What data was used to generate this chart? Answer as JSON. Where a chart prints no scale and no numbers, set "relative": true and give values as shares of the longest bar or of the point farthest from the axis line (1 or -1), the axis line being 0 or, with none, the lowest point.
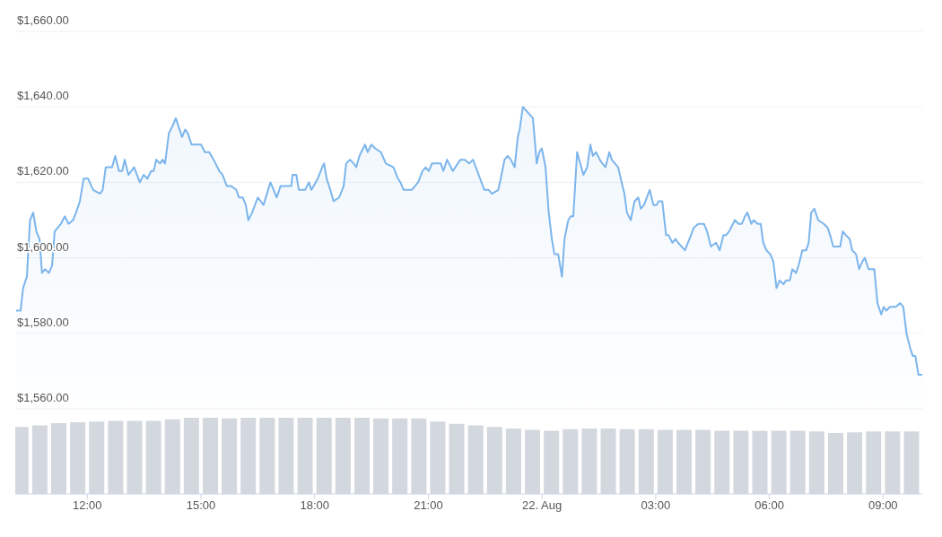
{
  "chart_data": [
    {
      "type": "area",
      "tick_labels": "y",
      "grid": "y",
      "marker": "none",
      "line_style": "solid",
      "xlim": [
        "--08-21T10:06",
        "--08-22T10:02"
      ],
      "ylim": [
        1560,
        1660
      ],
      "yticks": [
        {
          "value": 1560,
          "label": "$1,560.00"
        },
        {
          "value": 1580,
          "label": "$1,580.00"
        },
        {
          "value": 1600,
          "label": "$1,600.00"
        },
        {
          "value": 1620,
          "label": "$1,620.00"
        },
        {
          "value": 1640,
          "label": "$1,640.00"
        },
        {
          "value": 1660,
          "label": "$1,660.00"
        }
      ],
      "series": [
        {
          "color": "#7cb5ec",
          "x": [
            "--08-21T10:06",
            "--08-21T10:13",
            "--08-21T10:17",
            "--08-21T10:23",
            "--08-21T10:28",
            "--08-21T10:33",
            "--08-21T10:38",
            "--08-21T10:43",
            "--08-21T10:47",
            "--08-21T10:52",
            "--08-21T10:58",
            "--08-21T11:03",
            "--08-21T11:07",
            "--08-21T11:17",
            "--08-21T11:23",
            "--08-21T11:29",
            "--08-21T11:36",
            "--08-21T11:41",
            "--08-21T11:47",
            "--08-21T11:53",
            "--08-21T12:00",
            "--08-21T12:08",
            "--08-21T12:19",
            "--08-21T12:23",
            "--08-21T12:28",
            "--08-21T12:38",
            "--08-21T12:43",
            "--08-21T12:49",
            "--08-21T12:54",
            "--08-21T12:58",
            "--08-21T13:04",
            "--08-21T13:13",
            "--08-21T13:22",
            "--08-21T13:28",
            "--08-21T13:34",
            "--08-21T13:40",
            "--08-21T13:44",
            "--08-21T13:48",
            "--08-21T13:54",
            "--08-21T13:58",
            "--08-21T14:02",
            "--08-21T14:08",
            "--08-21T14:14",
            "--08-21T14:19",
            "--08-21T14:29",
            "--08-21T14:34",
            "--08-21T14:38",
            "--08-21T14:44",
            "--08-21T14:52",
            "--08-21T14:59",
            "--08-21T15:05",
            "--08-21T15:12",
            "--08-21T15:19",
            "--08-21T15:28",
            "--08-21T15:33",
            "--08-21T15:40",
            "--08-21T15:47",
            "--08-21T15:55",
            "--08-21T15:59",
            "--08-21T16:05",
            "--08-21T16:10",
            "--08-21T16:14",
            "--08-21T16:20",
            "--08-21T16:29",
            "--08-21T16:38",
            "--08-21T16:49",
            "--08-21T16:59",
            "--08-21T17:05",
            "--08-21T17:13",
            "--08-21T17:17",
            "--08-21T17:22",
            "--08-21T17:24",
            "--08-21T17:30",
            "--08-21T17:34",
            "--08-21T17:44",
            "--08-21T17:50",
            "--08-21T17:54",
            "--08-21T18:04",
            "--08-21T18:11",
            "--08-21T18:14",
            "--08-21T18:18",
            "--08-21T18:24",
            "--08-21T18:29",
            "--08-21T18:38",
            "--08-21T18:45",
            "--08-21T18:49",
            "--08-21T18:55",
            "--08-21T19:01",
            "--08-21T19:05",
            "--08-21T19:10",
            "--08-21T19:19",
            "--08-21T19:23",
            "--08-21T19:29",
            "--08-21T19:35",
            "--08-21T19:44",
            "--08-21T19:52",
            "--08-21T20:04",
            "--08-21T20:11",
            "--08-21T20:15",
            "--08-21T20:20",
            "--08-21T20:25",
            "--08-21T20:29",
            "--08-21T20:33",
            "--08-21T20:43",
            "--08-21T20:50",
            "--08-21T20:55",
            "--08-21T21:00",
            "--08-21T21:05",
            "--08-21T21:14",
            "--08-21T21:19",
            "--08-21T21:23",
            "--08-21T21:29",
            "--08-21T21:38",
            "--08-21T21:50",
            "--08-21T21:57",
            "--08-21T22:04",
            "--08-21T22:10",
            "--08-21T22:19",
            "--08-21T22:28",
            "--08-21T22:35",
            "--08-21T22:40",
            "--08-21T22:50",
            "--08-21T22:54",
            "--08-21T23:00",
            "--08-21T23:05",
            "--08-21T23:10",
            "--08-21T23:16",
            "--08-21T23:21",
            "--08-21T23:24",
            "--08-21T23:29",
            "--08-21T23:45",
            "--08-21T23:51",
            "--08-21T23:55",
            "--08-21T23:59",
            "--08-22T00:05",
            "--08-22T00:10",
            "--08-22T00:15",
            "--08-22T00:19",
            "--08-22T00:25",
            "--08-22T00:31",
            "--08-22T00:35",
            "--08-22T00:41",
            "--08-22T00:45",
            "--08-22T00:49",
            "--08-22T00:55",
            "--08-22T01:05",
            "--08-22T01:11",
            "--08-22T01:16",
            "--08-22T01:20",
            "--08-22T01:25",
            "--08-22T01:31",
            "--08-22T01:35",
            "--08-22T01:40",
            "--08-22T01:46",
            "--08-22T01:50",
            "--08-22T02:00",
            "--08-22T02:07",
            "--08-22T02:10",
            "--08-22T02:14",
            "--08-22T02:20",
            "--08-22T02:26",
            "--08-22T02:32",
            "--08-22T02:36",
            "--08-22T02:41",
            "--08-22T02:50",
            "--08-22T02:56",
            "--08-22T03:01",
            "--08-22T03:04",
            "--08-22T03:10",
            "--08-22T03:16",
            "--08-22T03:20",
            "--08-22T03:26",
            "--08-22T03:31",
            "--08-22T03:35",
            "--08-22T03:46",
            "--08-22T03:53",
            "--08-22T04:00",
            "--08-22T04:07",
            "--08-22T04:16",
            "--08-22T04:21",
            "--08-22T04:27",
            "--08-22T04:35",
            "--08-22T04:41",
            "--08-22T04:47",
            "--08-22T04:51",
            "--08-22T04:56",
            "--08-22T05:05",
            "--08-22T05:11",
            "--08-22T05:16",
            "--08-22T05:21",
            "--08-22T05:25",
            "--08-22T05:31",
            "--08-22T05:35",
            "--08-22T05:41",
            "--08-22T05:46",
            "--08-22T05:50",
            "--08-22T05:55",
            "--08-22T06:01",
            "--08-22T06:06",
            "--08-22T06:11",
            "--08-22T06:16",
            "--08-22T06:22",
            "--08-22T06:26",
            "--08-22T06:32",
            "--08-22T06:36",
            "--08-22T06:42",
            "--08-22T06:46",
            "--08-22T06:52",
            "--08-22T06:58",
            "--08-22T07:02",
            "--08-22T07:06",
            "--08-22T07:11",
            "--08-22T07:17",
            "--08-22T07:26",
            "--08-22T07:32",
            "--08-22T07:36",
            "--08-22T07:41",
            "--08-22T07:52",
            "--08-22T07:56",
            "--08-22T08:01",
            "--08-22T08:07",
            "--08-22T08:11",
            "--08-22T08:17",
            "--08-22T08:22",
            "--08-22T08:27",
            "--08-22T08:31",
            "--08-22T08:37",
            "--08-22T08:46",
            "--08-22T08:51",
            "--08-22T08:57",
            "--08-22T09:01",
            "--08-22T09:05",
            "--08-22T09:11",
            "--08-22T09:20",
            "--08-22T09:27",
            "--08-22T09:32",
            "--08-22T09:37",
            "--08-22T09:43",
            "--08-22T09:47",
            "--08-22T09:51",
            "--08-22T09:56",
            "--08-22T10:02"
          ],
          "values": [
            1586,
            1586,
            1592,
            1595,
            1610,
            1612,
            1607,
            1605,
            1596,
            1597,
            1596,
            1598,
            1607,
            1609,
            1611,
            1609,
            1610,
            1612,
            1615,
            1621,
            1621,
            1618,
            1617,
            1618,
            1624,
            1624,
            1627,
            1623,
            1623,
            1626,
            1622,
            1624,
            1620,
            1622,
            1621,
            1623,
            1623,
            1626,
            1625,
            1626,
            1625,
            1633,
            1635,
            1637,
            1632,
            1634,
            1633,
            1630,
            1630,
            1630,
            1628,
            1628,
            1626,
            1623,
            1622,
            1619,
            1619,
            1618,
            1616,
            1616,
            1614,
            1610,
            1612,
            1616,
            1614,
            1620,
            1616,
            1619,
            1619,
            1619,
            1619,
            1622,
            1622,
            1618,
            1618,
            1620,
            1618,
            1621,
            1624,
            1625,
            1621,
            1618,
            1615,
            1616,
            1619,
            1625,
            1626,
            1625,
            1624,
            1627,
            1630,
            1628,
            1630,
            1629,
            1628,
            1625,
            1624,
            1621,
            1620,
            1618,
            1618,
            1618,
            1618,
            1620,
            1623,
            1624,
            1623,
            1625,
            1625,
            1625,
            1623,
            1626,
            1623,
            1626,
            1626,
            1625,
            1626,
            1622,
            1618,
            1618,
            1617,
            1618,
            1621,
            1626,
            1627,
            1626,
            1624,
            1632,
            1634,
            1640,
            1637,
            1625,
            1628,
            1629,
            1624,
            1612,
            1605,
            1601,
            1601,
            1595,
            1605,
            1610,
            1611,
            1611,
            1628,
            1622,
            1624,
            1630,
            1627,
            1628,
            1626,
            1625,
            1624,
            1628,
            1626,
            1624,
            1619,
            1617,
            1612,
            1610,
            1615,
            1616,
            1613,
            1614,
            1618,
            1614,
            1614,
            1615,
            1615,
            1606,
            1606,
            1604,
            1605,
            1604,
            1602,
            1605,
            1608,
            1609,
            1609,
            1607,
            1603,
            1604,
            1602,
            1606,
            1606,
            1607,
            1610,
            1609,
            1609,
            1611,
            1612,
            1609,
            1610,
            1609,
            1609,
            1604,
            1602,
            1601,
            1599,
            1592,
            1594,
            1593,
            1594,
            1594,
            1597,
            1596,
            1598,
            1602,
            1602,
            1604,
            1612,
            1613,
            1610,
            1609,
            1608,
            1606,
            1603,
            1603,
            1607,
            1606,
            1605,
            1602,
            1601,
            1597,
            1599,
            1600,
            1597,
            1597,
            1588,
            1585,
            1587,
            1586,
            1587,
            1587,
            1588,
            1587,
            1580,
            1576,
            1574,
            1574,
            1569,
            1569
          ]
        }
      ]
    },
    {
      "type": "bar",
      "relative": true,
      "tick_labels": "x",
      "xlim": [
        "--08-21T10:06",
        "--08-22T10:02"
      ],
      "xticks": [
        {
          "value": "--08-21T12:00",
          "label": "12:00"
        },
        {
          "value": "--08-21T15:00",
          "label": "15:00"
        },
        {
          "value": "--08-21T18:00",
          "label": "18:00"
        },
        {
          "value": "--08-21T21:00",
          "label": "21:00"
        },
        {
          "value": "--08-22T00:00",
          "label": "22. Aug"
        },
        {
          "value": "--08-22T03:00",
          "label": "03:00"
        },
        {
          "value": "--08-22T06:00",
          "label": "06:00"
        },
        {
          "value": "--08-22T09:00",
          "label": "09:00"
        }
      ],
      "series": [
        {
          "color": "#d3d7de",
          "x": [
            "--08-21T10:15",
            "--08-21T10:45",
            "--08-21T11:15",
            "--08-21T11:45",
            "--08-21T12:15",
            "--08-21T12:45",
            "--08-21T13:15",
            "--08-21T13:45",
            "--08-21T14:15",
            "--08-21T14:45",
            "--08-21T15:15",
            "--08-21T15:45",
            "--08-21T16:15",
            "--08-21T16:45",
            "--08-21T17:15",
            "--08-21T17:45",
            "--08-21T18:15",
            "--08-21T18:45",
            "--08-21T19:15",
            "--08-21T19:45",
            "--08-21T20:15",
            "--08-21T20:45",
            "--08-21T21:15",
            "--08-21T21:45",
            "--08-21T22:15",
            "--08-21T22:45",
            "--08-21T23:15",
            "--08-21T23:45",
            "--08-22T00:15",
            "--08-22T00:45",
            "--08-22T01:15",
            "--08-22T01:45",
            "--08-22T02:15",
            "--08-22T02:45",
            "--08-22T03:15",
            "--08-22T03:45",
            "--08-22T04:15",
            "--08-22T04:45",
            "--08-22T05:15",
            "--08-22T05:45",
            "--08-22T06:15",
            "--08-22T06:45",
            "--08-22T07:15",
            "--08-22T07:45",
            "--08-22T08:15",
            "--08-22T08:45",
            "--08-22T09:15",
            "--08-22T09:45"
          ],
          "values": [
            0.88,
            0.9,
            0.93,
            0.94,
            0.95,
            0.96,
            0.96,
            0.96,
            0.98,
            1,
            1,
            0.99,
            1,
            1,
            1,
            1,
            1,
            1,
            1,
            0.99,
            0.99,
            0.99,
            0.95,
            0.92,
            0.9,
            0.88,
            0.86,
            0.84,
            0.83,
            0.85,
            0.86,
            0.86,
            0.85,
            0.85,
            0.84,
            0.84,
            0.84,
            0.83,
            0.83,
            0.83,
            0.83,
            0.83,
            0.82,
            0.8,
            0.81,
            0.82,
            0.82,
            0.82
          ]
        }
      ]
    }
  ]
}
